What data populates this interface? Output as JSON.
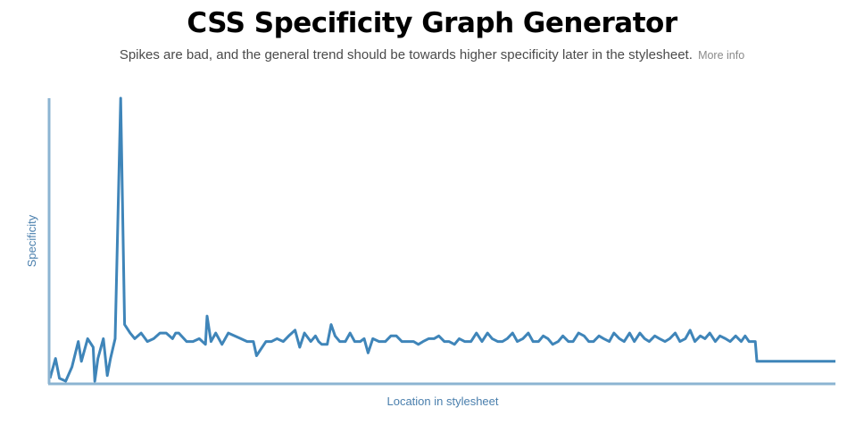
{
  "header": {
    "title": "CSS Specificity Graph Generator",
    "subtitle": "Spikes are bad, and the general trend should be towards higher specificity later in the stylesheet.",
    "more_info": "More info"
  },
  "chart_data": {
    "type": "line",
    "title": "",
    "xlabel": "Location in stylesheet",
    "ylabel": "Specificity",
    "xlim": [
      0,
      100
    ],
    "ylim": [
      0,
      100
    ],
    "color": "#3f85b9",
    "axis_color": "#8cb4d2",
    "series": [
      {
        "name": "specificity",
        "points": [
          [
            0,
            1
          ],
          [
            0.7,
            8
          ],
          [
            1.2,
            1
          ],
          [
            2,
            0
          ],
          [
            2.8,
            5
          ],
          [
            3.6,
            14
          ],
          [
            4,
            7
          ],
          [
            4.8,
            15
          ],
          [
            5.5,
            12
          ],
          [
            5.7,
            0
          ],
          [
            6.1,
            8
          ],
          [
            6.8,
            15
          ],
          [
            7.3,
            2
          ],
          [
            7.7,
            8
          ],
          [
            8.3,
            15
          ],
          [
            9,
            100
          ],
          [
            9.5,
            20
          ],
          [
            10.2,
            17
          ],
          [
            10.8,
            15
          ],
          [
            11.6,
            17
          ],
          [
            12.4,
            14
          ],
          [
            13.2,
            15
          ],
          [
            14,
            17
          ],
          [
            14.8,
            17
          ],
          [
            15.6,
            15
          ],
          [
            16,
            17
          ],
          [
            16.4,
            17
          ],
          [
            17.4,
            14
          ],
          [
            18.2,
            14
          ],
          [
            19,
            15
          ],
          [
            19.8,
            13
          ],
          [
            20,
            23
          ],
          [
            20.5,
            14
          ],
          [
            21.1,
            17
          ],
          [
            21.9,
            13
          ],
          [
            22.7,
            17
          ],
          [
            23.5,
            16
          ],
          [
            24.3,
            15
          ],
          [
            25.1,
            14
          ],
          [
            25.9,
            14
          ],
          [
            26.3,
            9
          ],
          [
            27.5,
            14
          ],
          [
            28.2,
            14
          ],
          [
            28.9,
            15
          ],
          [
            29.7,
            14
          ],
          [
            30.4,
            16
          ],
          [
            31.2,
            18
          ],
          [
            31.8,
            12
          ],
          [
            32.4,
            17
          ],
          [
            33.2,
            14
          ],
          [
            33.8,
            16
          ],
          [
            34.2,
            14
          ],
          [
            34.6,
            13
          ],
          [
            35.3,
            13
          ],
          [
            35.8,
            20
          ],
          [
            36.3,
            16
          ],
          [
            36.9,
            14
          ],
          [
            37.6,
            14
          ],
          [
            38.2,
            17
          ],
          [
            38.8,
            14
          ],
          [
            39.5,
            14
          ],
          [
            40,
            15
          ],
          [
            40.5,
            10
          ],
          [
            41.1,
            15
          ],
          [
            41.9,
            14
          ],
          [
            42.7,
            14
          ],
          [
            43.4,
            16
          ],
          [
            44.1,
            16
          ],
          [
            44.8,
            14
          ],
          [
            45.6,
            14
          ],
          [
            46.3,
            14
          ],
          [
            46.9,
            13
          ],
          [
            47.5,
            14
          ],
          [
            48.2,
            15
          ],
          [
            48.9,
            15
          ],
          [
            49.5,
            16
          ],
          [
            50.2,
            14
          ],
          [
            50.8,
            14
          ],
          [
            51.5,
            13
          ],
          [
            52.1,
            15
          ],
          [
            52.8,
            14
          ],
          [
            53.6,
            14
          ],
          [
            54.3,
            17
          ],
          [
            55,
            14
          ],
          [
            55.7,
            17
          ],
          [
            56.3,
            15
          ],
          [
            57,
            14
          ],
          [
            57.6,
            14
          ],
          [
            58.2,
            15
          ],
          [
            58.9,
            17
          ],
          [
            59.5,
            14
          ],
          [
            60.2,
            15
          ],
          [
            60.9,
            17
          ],
          [
            61.5,
            14
          ],
          [
            62.2,
            14
          ],
          [
            62.8,
            16
          ],
          [
            63.4,
            15
          ],
          [
            64,
            13
          ],
          [
            64.7,
            14
          ],
          [
            65.3,
            16
          ],
          [
            66,
            14
          ],
          [
            66.6,
            14
          ],
          [
            67.3,
            17
          ],
          [
            68,
            16
          ],
          [
            68.6,
            14
          ],
          [
            69.2,
            14
          ],
          [
            69.9,
            16
          ],
          [
            70.5,
            15
          ],
          [
            71.2,
            14
          ],
          [
            71.8,
            17
          ],
          [
            72.5,
            15
          ],
          [
            73.1,
            14
          ],
          [
            73.8,
            17
          ],
          [
            74.4,
            14
          ],
          [
            75.1,
            17
          ],
          [
            75.7,
            15
          ],
          [
            76.3,
            14
          ],
          [
            77,
            16
          ],
          [
            77.6,
            15
          ],
          [
            78.3,
            14
          ],
          [
            78.9,
            15
          ],
          [
            79.6,
            17
          ],
          [
            80.2,
            14
          ],
          [
            80.9,
            15
          ],
          [
            81.5,
            18
          ],
          [
            82.1,
            14
          ],
          [
            82.8,
            16
          ],
          [
            83.4,
            15
          ],
          [
            84,
            17
          ],
          [
            84.7,
            14
          ],
          [
            85.3,
            16
          ],
          [
            86,
            15
          ],
          [
            86.6,
            14
          ],
          [
            87.3,
            16
          ],
          [
            88,
            14
          ],
          [
            88.5,
            16
          ],
          [
            89,
            14
          ],
          [
            89.8,
            14
          ],
          [
            90,
            7
          ],
          [
            91,
            7
          ],
          [
            92,
            7
          ],
          [
            93,
            7
          ],
          [
            94,
            7
          ],
          [
            95,
            7
          ],
          [
            96,
            7
          ],
          [
            97,
            7
          ],
          [
            98,
            7
          ],
          [
            99,
            7
          ],
          [
            100,
            7
          ]
        ]
      }
    ]
  }
}
